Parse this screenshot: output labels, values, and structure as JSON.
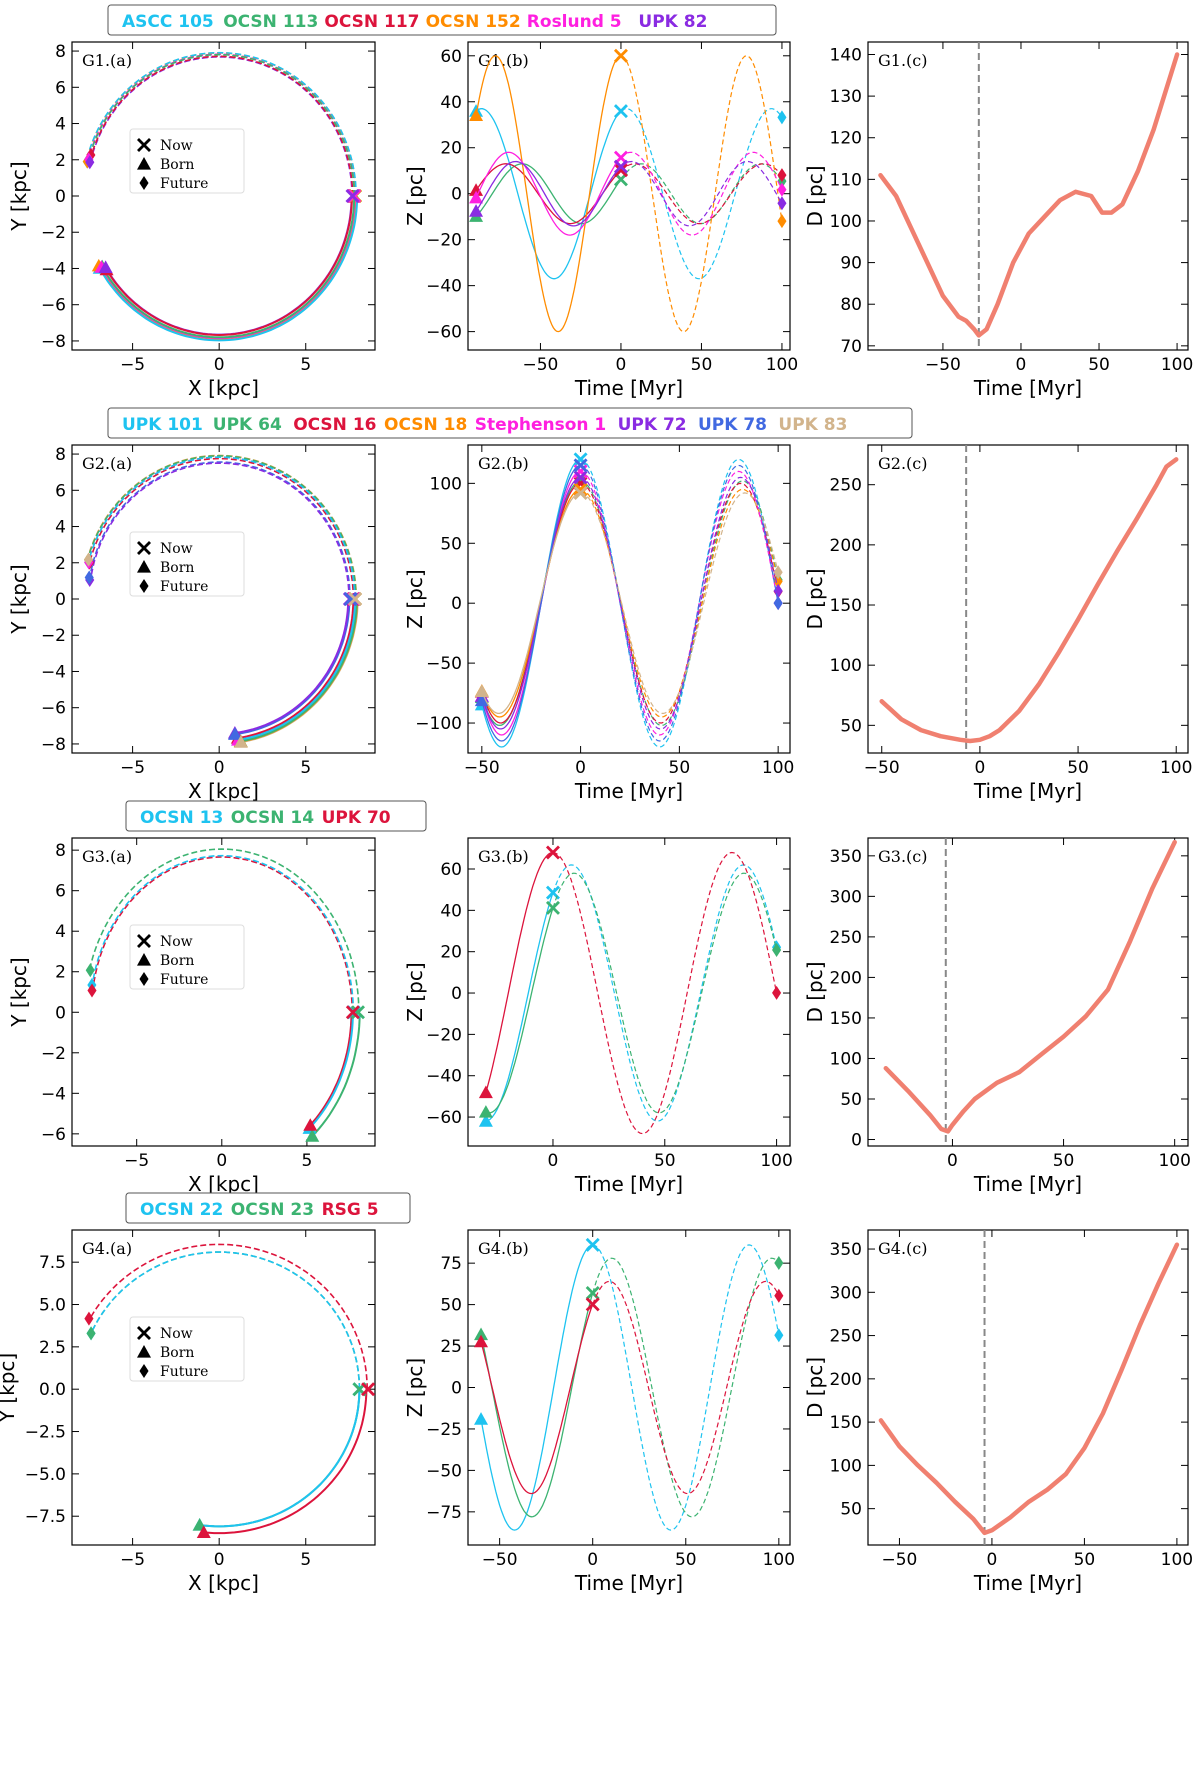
{
  "markers_legend": {
    "now": "Now",
    "born": "Born",
    "future": "Future"
  },
  "colors": {
    "distance_line": "#f08070",
    "dashed_vline": "#888888",
    "axis": "#000000"
  },
  "chart_data": [
    {
      "group": "G1",
      "legend": [
        {
          "name": "ASCC 105",
          "color": "#1ec3f0"
        },
        {
          "name": "OCSN 113",
          "color": "#3cb371"
        },
        {
          "name": "OCSN 117",
          "color": "#dc143c"
        },
        {
          "name": "OCSN 152",
          "color": "#ff8c00"
        },
        {
          "name": "Roslund 5",
          "color": "#ff1fe0"
        },
        {
          "name": "UPK 82",
          "color": "#8a2be2"
        }
      ],
      "panels": [
        {
          "type": "line",
          "kind": "xy",
          "label": "G1.(a)",
          "xlabel": "X [kpc]",
          "ylabel": "Y [kpc]",
          "xlim": [
            -8.5,
            9.0
          ],
          "ylim": [
            -8.5,
            8.5
          ],
          "xticks": [
            -5,
            0,
            5
          ],
          "yticks": [
            -8,
            -6,
            -4,
            -2,
            0,
            2,
            4,
            6,
            8
          ],
          "ytick_decimals": 0,
          "series": [
            {
              "color": "#1ec3f0",
              "R": 7.85,
              "born_deg": 210,
              "now_deg": 0,
              "future_deg": 166,
              "shift": 0.12
            },
            {
              "color": "#3cb371",
              "R": 7.8,
              "born_deg": 210,
              "now_deg": 0,
              "future_deg": 165,
              "shift": 0.0
            },
            {
              "color": "#dc143c",
              "R": 7.75,
              "born_deg": 212,
              "now_deg": 0,
              "future_deg": 163,
              "shift": -0.08
            },
            {
              "color": "#ff8c00",
              "R": 7.85,
              "born_deg": 209,
              "now_deg": 0,
              "future_deg": 166,
              "shift": 0.1
            },
            {
              "color": "#ff1fe0",
              "R": 7.8,
              "born_deg": 210,
              "now_deg": 0,
              "future_deg": 165,
              "shift": 0.05
            },
            {
              "color": "#8a2be2",
              "R": 7.7,
              "born_deg": 211,
              "now_deg": 0,
              "future_deg": 166,
              "shift": -0.05
            }
          ]
        },
        {
          "type": "line",
          "kind": "tz",
          "label": "G1.(b)",
          "xlabel": "Time [Myr]",
          "ylabel": "Z [pc]",
          "xlim": [
            -95,
            105
          ],
          "ylim": [
            -68,
            66
          ],
          "xticks": [
            -50,
            0,
            50,
            100
          ],
          "yticks": [
            -60,
            -40,
            -20,
            0,
            20,
            40,
            60
          ],
          "tmin": -90,
          "tmax": 100,
          "series": [
            {
              "color": "#1ec3f0",
              "A": 37,
              "P": 90,
              "phi": 1.33,
              "ph2": 1.33
            },
            {
              "color": "#3cb371",
              "A": 13,
              "P": 74,
              "phi": 0.5,
              "ph2": 0.5
            },
            {
              "color": "#dc143c",
              "A": 13,
              "P": 80,
              "phi": 0.9,
              "ph2": 0.9
            },
            {
              "color": "#ff8c00",
              "A": 60,
              "P": 78,
              "phi": 1.57,
              "ph2": 1.57
            },
            {
              "color": "#ff1fe0",
              "A": 18,
              "P": 76,
              "phi": 1.06,
              "ph2": 1.06
            },
            {
              "color": "#8a2be2",
              "A": 14,
              "P": 72,
              "phi": 1.0,
              "ph2": 1.0
            }
          ]
        },
        {
          "type": "line",
          "kind": "td",
          "label": "G1.(c)",
          "xlabel": "Time [Myr]",
          "ylabel": "D [pc]",
          "xlim": [
            -98,
            107
          ],
          "ylim": [
            69,
            143
          ],
          "xticks": [
            -50,
            0,
            50,
            100
          ],
          "yticks": [
            70,
            80,
            90,
            100,
            110,
            120,
            130,
            140
          ],
          "vline": -27,
          "x": [
            -90,
            -80,
            -70,
            -60,
            -50,
            -40,
            -35,
            -30,
            -27,
            -22,
            -15,
            -5,
            5,
            15,
            25,
            35,
            45,
            52,
            58,
            65,
            75,
            85,
            100
          ],
          "y": [
            111,
            106,
            98,
            90,
            82,
            77,
            76,
            74,
            72.5,
            74,
            80,
            90,
            97,
            101,
            105,
            107,
            106,
            102,
            102,
            104,
            112,
            122,
            140
          ]
        }
      ]
    },
    {
      "group": "G2",
      "legend": [
        {
          "name": "UPK 101",
          "color": "#1ec3f0"
        },
        {
          "name": "UPK 64",
          "color": "#3cb371"
        },
        {
          "name": "OCSN 16",
          "color": "#dc143c"
        },
        {
          "name": "OCSN 18",
          "color": "#ff8c00"
        },
        {
          "name": "Stephenson 1",
          "color": "#ff1fe0"
        },
        {
          "name": "UPK 72",
          "color": "#8a2be2"
        },
        {
          "name": "UPK 78",
          "color": "#4169e1"
        },
        {
          "name": "UPK 83",
          "color": "#d2b48c"
        }
      ],
      "panels": [
        {
          "type": "line",
          "kind": "xy",
          "label": "G2.(a)",
          "xlabel": "X [kpc]",
          "ylabel": "Y [kpc]",
          "xlim": [
            -8.5,
            9.0
          ],
          "ylim": [
            -8.5,
            8.5
          ],
          "xticks": [
            -5,
            0,
            5
          ],
          "yticks": [
            -8,
            -6,
            -4,
            -2,
            0,
            2,
            4,
            6,
            8
          ],
          "ytick_decimals": 0,
          "series": [
            {
              "color": "#1ec3f0",
              "R": 7.8,
              "born_deg": 278,
              "now_deg": 0,
              "future_deg": 165,
              "shift": 0.05
            },
            {
              "color": "#3cb371",
              "R": 7.85,
              "born_deg": 279,
              "now_deg": 0,
              "future_deg": 164,
              "shift": 0.1
            },
            {
              "color": "#dc143c",
              "R": 7.75,
              "born_deg": 278,
              "now_deg": 0,
              "future_deg": 165,
              "shift": 0.0
            },
            {
              "color": "#ff8c00",
              "R": 7.85,
              "born_deg": 279,
              "now_deg": 0,
              "future_deg": 164,
              "shift": 0.12
            },
            {
              "color": "#ff1fe0",
              "R": 7.8,
              "born_deg": 278,
              "now_deg": 0,
              "future_deg": 165,
              "shift": 0.06
            },
            {
              "color": "#8a2be2",
              "R": 7.55,
              "born_deg": 277,
              "now_deg": 0,
              "future_deg": 172,
              "shift": -0.1
            },
            {
              "color": "#4169e1",
              "R": 7.6,
              "born_deg": 277,
              "now_deg": 0,
              "future_deg": 171,
              "shift": -0.08
            },
            {
              "color": "#d2b48c",
              "R": 7.85,
              "born_deg": 279,
              "now_deg": 0,
              "future_deg": 164,
              "shift": 0.15
            }
          ]
        },
        {
          "type": "line",
          "kind": "tz",
          "label": "G2.(b)",
          "xlabel": "Time [Myr]",
          "ylabel": "Z [pc]",
          "xlim": [
            -57,
            106
          ],
          "ylim": [
            -125,
            132
          ],
          "xticks": [
            -50,
            0,
            50,
            100
          ],
          "yticks": [
            -100,
            -50,
            0,
            50,
            100
          ],
          "tmin": -50,
          "tmax": 100,
          "series": [
            {
              "color": "#1ec3f0",
              "A": 120,
              "P": 80,
              "phi": 1.57,
              "ph2": 1.57
            },
            {
              "color": "#3cb371",
              "A": 102,
              "P": 82,
              "phi": 1.57,
              "ph2": 1.57
            },
            {
              "color": "#dc143c",
              "A": 100,
              "P": 81,
              "phi": 1.57,
              "ph2": 1.57
            },
            {
              "color": "#ff8c00",
              "A": 95,
              "P": 82,
              "phi": 1.57,
              "ph2": 1.57
            },
            {
              "color": "#ff1fe0",
              "A": 110,
              "P": 80,
              "phi": 1.57,
              "ph2": 1.57
            },
            {
              "color": "#8a2be2",
              "A": 105,
              "P": 81,
              "phi": 1.57,
              "ph2": 1.57
            },
            {
              "color": "#4169e1",
              "A": 115,
              "P": 80,
              "phi": 1.57,
              "ph2": 1.57
            },
            {
              "color": "#d2b48c",
              "A": 92,
              "P": 83,
              "phi": 1.57,
              "ph2": 1.57
            }
          ]
        },
        {
          "type": "line",
          "kind": "td",
          "label": "G2.(c)",
          "xlabel": "Time [Myr]",
          "ylabel": "D [pc]",
          "xlim": [
            -57,
            106
          ],
          "ylim": [
            27,
            283
          ],
          "xticks": [
            -50,
            0,
            50,
            100
          ],
          "yticks": [
            50,
            100,
            150,
            200,
            250
          ],
          "vline": -7,
          "x": [
            -50,
            -40,
            -30,
            -20,
            -10,
            -5,
            0,
            5,
            10,
            20,
            30,
            40,
            50,
            60,
            70,
            80,
            90,
            95,
            100
          ],
          "y": [
            70,
            55,
            46,
            41,
            38,
            37,
            38,
            41,
            46,
            62,
            84,
            110,
            138,
            167,
            195,
            222,
            250,
            265,
            271
          ]
        }
      ]
    },
    {
      "group": "G3",
      "legend": [
        {
          "name": "OCSN 13",
          "color": "#1ec3f0"
        },
        {
          "name": "OCSN 14",
          "color": "#3cb371"
        },
        {
          "name": "UPK 70",
          "color": "#dc143c"
        }
      ],
      "panels": [
        {
          "type": "line",
          "kind": "xy",
          "label": "G3.(a)",
          "xlabel": "X [kpc]",
          "ylabel": "Y [kpc]",
          "xlim": [
            -8.8,
            9.0
          ],
          "ylim": [
            -6.6,
            8.6
          ],
          "xticks": [
            -5,
            0,
            5
          ],
          "yticks": [
            -6,
            -4,
            -2,
            0,
            2,
            4,
            6,
            8
          ],
          "ytick_decimals": 0,
          "series": [
            {
              "color": "#1ec3f0",
              "R": 7.75,
              "born_deg": 312,
              "now_deg": 0,
              "future_deg": 170,
              "shift": -0.05
            },
            {
              "color": "#3cb371",
              "R": 8.0,
              "born_deg": 311,
              "now_deg": 0,
              "future_deg": 165,
              "shift": 0.1
            },
            {
              "color": "#dc143c",
              "R": 7.7,
              "born_deg": 313,
              "now_deg": 0,
              "future_deg": 172,
              "shift": -0.08
            }
          ]
        },
        {
          "type": "line",
          "kind": "tz",
          "label": "G3.(b)",
          "xlabel": "Time [Myr]",
          "ylabel": "Z [pc]",
          "xlim": [
            -38,
            106
          ],
          "ylim": [
            -74,
            75
          ],
          "xticks": [
            0,
            50,
            100
          ],
          "yticks": [
            -60,
            -40,
            -20,
            0,
            20,
            40,
            60
          ],
          "tmin": -30,
          "tmax": 100,
          "series": [
            {
              "color": "#1ec3f0",
              "A": 62,
              "P": 77,
              "phi": 0.9,
              "ph2": 0.9
            },
            {
              "color": "#3cb371",
              "A": 58,
              "P": 76,
              "phi": 0.79,
              "ph2": 0.79
            },
            {
              "color": "#dc143c",
              "A": 68,
              "P": 80,
              "phi": 1.57,
              "ph2": 1.57
            }
          ]
        },
        {
          "type": "line",
          "kind": "td",
          "label": "G3.(c)",
          "xlabel": "Time [Myr]",
          "ylabel": "D [pc]",
          "xlim": [
            -38,
            106
          ],
          "ylim": [
            -8,
            372
          ],
          "xticks": [
            0,
            50,
            100
          ],
          "yticks": [
            0,
            50,
            100,
            150,
            200,
            250,
            300,
            350
          ],
          "vline": -3,
          "x": [
            -30,
            -20,
            -10,
            -5,
            -2,
            0,
            5,
            10,
            20,
            30,
            40,
            50,
            60,
            70,
            80,
            90,
            100
          ],
          "y": [
            88,
            60,
            30,
            13,
            10,
            18,
            35,
            50,
            70,
            83,
            105,
            127,
            152,
            185,
            245,
            310,
            367
          ]
        }
      ]
    },
    {
      "group": "G4",
      "legend": [
        {
          "name": "OCSN 22",
          "color": "#1ec3f0"
        },
        {
          "name": "OCSN 23",
          "color": "#3cb371"
        },
        {
          "name": "RSG 5",
          "color": "#dc143c"
        }
      ],
      "panels": [
        {
          "type": "line",
          "kind": "xy",
          "label": "G4.(a)",
          "xlabel": "X [kpc]",
          "ylabel": "Y [kpc]",
          "xlim": [
            -8.5,
            9.0
          ],
          "ylim": [
            -9.2,
            9.4
          ],
          "xticks": [
            -5,
            0,
            5
          ],
          "yticks": [
            -7.5,
            -5.0,
            -2.5,
            0.0,
            2.5,
            5.0,
            7.5
          ],
          "ytick_decimals": 1,
          "series": [
            {
              "color": "#1ec3f0",
              "R": 8.1,
              "born_deg": 262,
              "now_deg": 0,
              "future_deg": 156,
              "shift": 0.0
            },
            {
              "color": "#3cb371",
              "R": 8.1,
              "born_deg": 262,
              "now_deg": 0,
              "future_deg": 156,
              "shift": 0.0
            },
            {
              "color": "#dc143c",
              "R": 8.6,
              "born_deg": 264,
              "now_deg": 0,
              "future_deg": 151,
              "shift": -0.1
            }
          ]
        },
        {
          "type": "line",
          "kind": "tz",
          "label": "G4.(b)",
          "xlabel": "Time [Myr]",
          "ylabel": "Z [pc]",
          "xlim": [
            -67,
            106
          ],
          "ylim": [
            -95,
            95
          ],
          "xticks": [
            -50,
            0,
            50,
            100
          ],
          "yticks": [
            -75,
            -50,
            -25,
            0,
            25,
            50,
            75
          ],
          "tmin": -60,
          "tmax": 100,
          "series": [
            {
              "color": "#1ec3f0",
              "A": 86,
              "P": 84,
              "phi": 1.57,
              "ph2": 1.57
            },
            {
              "color": "#3cb371",
              "A": 78,
              "P": 86,
              "phi": 0.82,
              "ph2": 0.82
            },
            {
              "color": "#dc143c",
              "A": 64,
              "P": 84,
              "phi": 0.9,
              "ph2": 0.9
            }
          ]
        },
        {
          "type": "line",
          "kind": "td",
          "label": "G4.(c)",
          "xlabel": "Time [Myr]",
          "ylabel": "D [pc]",
          "xlim": [
            -67,
            106
          ],
          "ylim": [
            8,
            372
          ],
          "xticks": [
            -50,
            0,
            50,
            100
          ],
          "yticks": [
            50,
            100,
            150,
            200,
            250,
            300,
            350
          ],
          "vline": -4,
          "x": [
            -60,
            -50,
            -40,
            -30,
            -20,
            -10,
            -4,
            0,
            10,
            20,
            30,
            40,
            50,
            60,
            70,
            80,
            90,
            100
          ],
          "y": [
            152,
            122,
            100,
            80,
            58,
            38,
            22,
            25,
            40,
            58,
            72,
            90,
            120,
            160,
            210,
            262,
            310,
            355
          ]
        }
      ]
    }
  ]
}
